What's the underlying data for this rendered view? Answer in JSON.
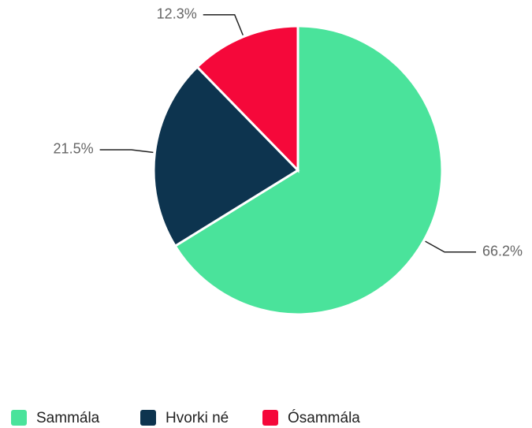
{
  "chart_data": {
    "type": "pie",
    "categories": [
      "Sammála",
      "Hvorki né",
      "Ósammála"
    ],
    "values": [
      66.2,
      21.5,
      12.3
    ],
    "value_labels": [
      "66.2%",
      "21.5%",
      "12.3%"
    ],
    "colors": [
      "#4ae39b",
      "#0d344f",
      "#f5083a"
    ],
    "legend": "bottom"
  }
}
